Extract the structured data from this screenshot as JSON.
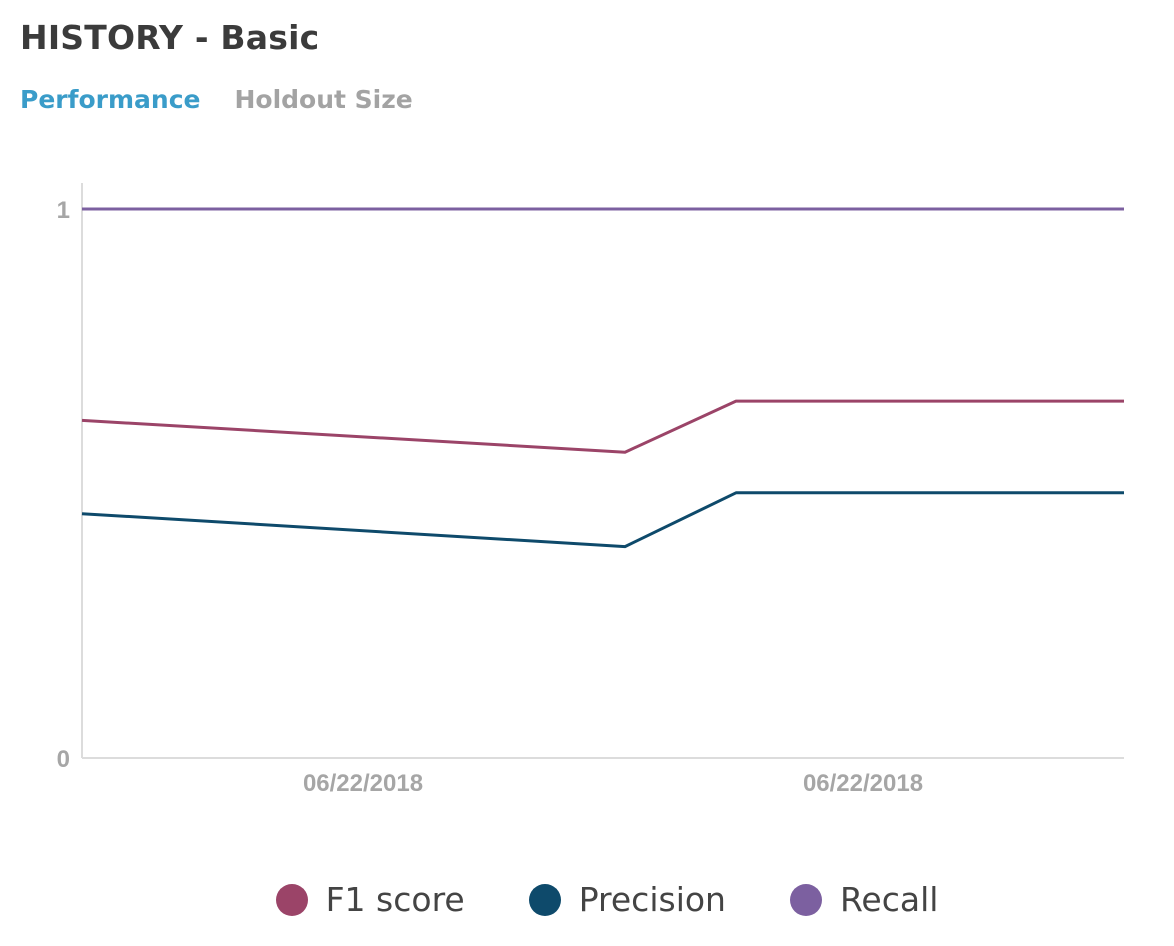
{
  "header": {
    "title": "HISTORY - Basic"
  },
  "tabs": [
    {
      "label": "Performance",
      "active": true
    },
    {
      "label": "Holdout Size",
      "active": false
    }
  ],
  "chart_data": {
    "type": "line",
    "x": [
      "06/22/2018",
      "06/22/2018",
      "06/22/2018",
      "06/22/2018"
    ],
    "x_tick_labels": [
      "06/22/2018",
      "06/22/2018"
    ],
    "y_tick_labels": [
      "1",
      "0"
    ],
    "ylim": [
      0,
      1
    ],
    "grid": false,
    "legend_position": "bottom",
    "series": [
      {
        "name": "F1 score",
        "color": "#9b4468",
        "values": [
          0.615,
          0.557,
          0.65,
          0.65
        ]
      },
      {
        "name": "Precision",
        "color": "#0e4a6b",
        "values": [
          0.445,
          0.385,
          0.483,
          0.483
        ]
      },
      {
        "name": "Recall",
        "color": "#7c60a0",
        "values": [
          1.0,
          1.0,
          1.0,
          1.0
        ]
      }
    ]
  }
}
